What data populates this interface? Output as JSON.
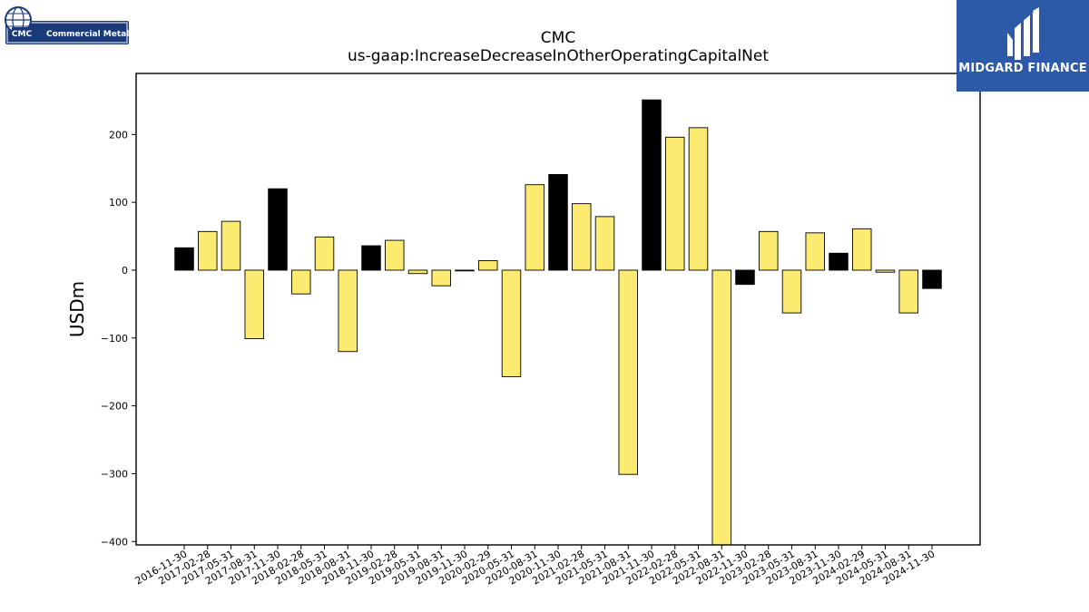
{
  "chart_data": {
    "type": "bar",
    "title": "CMC",
    "subtitle": "us-gaap:IncreaseDecreaseInOtherOperatingCapitalNet",
    "ylabel": "USDm",
    "xlabel": "",
    "ylim": [
      -405,
      290
    ],
    "yticks": [
      -400,
      -300,
      -200,
      -100,
      0,
      100,
      200
    ],
    "grid": false,
    "categories": [
      "2016-11-30",
      "2017-02-28",
      "2017-05-31",
      "2017-08-31",
      "2017-11-30",
      "2018-02-28",
      "2018-05-31",
      "2018-08-31",
      "2018-11-30",
      "2019-02-28",
      "2019-05-31",
      "2019-08-31",
      "2019-11-30",
      "2020-02-29",
      "2020-05-31",
      "2020-08-31",
      "2020-11-30",
      "2021-02-28",
      "2021-05-31",
      "2021-08-31",
      "2021-11-30",
      "2022-02-28",
      "2022-05-31",
      "2022-08-31",
      "2022-11-30",
      "2023-02-28",
      "2023-05-31",
      "2023-08-31",
      "2023-11-30",
      "2024-02-29",
      "2024-05-31",
      "2024-08-31",
      "2024-11-30"
    ],
    "values": [
      33,
      57,
      72,
      -101,
      120,
      -35,
      49,
      -120,
      36,
      44,
      -5,
      -23,
      0,
      14,
      -157,
      126,
      141,
      98,
      79,
      -301,
      251,
      196,
      210,
      -405,
      -21,
      57,
      -63,
      55,
      25,
      61,
      -3,
      -63,
      -27
    ],
    "highlight": [
      true,
      false,
      false,
      false,
      true,
      false,
      false,
      false,
      true,
      false,
      false,
      false,
      false,
      false,
      false,
      false,
      true,
      false,
      false,
      false,
      true,
      false,
      false,
      false,
      true,
      false,
      false,
      false,
      true,
      false,
      false,
      false,
      true
    ],
    "colors": {
      "highlight": "#000000",
      "normal": "#fdeb71",
      "edge": "#000000"
    }
  },
  "logos": {
    "left": {
      "mark": "CMC",
      "name": "Commercial Metals",
      "color": "#1b3a78"
    },
    "right": {
      "name": "MIDGARD FINANCE",
      "color": "#2c5aa8"
    }
  }
}
